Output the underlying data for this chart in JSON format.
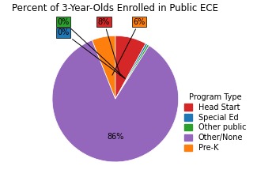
{
  "title": "Percent of 3-Year-Olds Enrolled in Public ECE",
  "slices": [
    8,
    0.5,
    0.5,
    85,
    6
  ],
  "raw_pcts": [
    8,
    0,
    0,
    86,
    6
  ],
  "labels": [
    "Head Start",
    "Special Ed",
    "Other public",
    "Other/None",
    "Pre-K"
  ],
  "pct_labels": [
    "8%",
    "0%",
    "0%",
    "86%",
    "6%"
  ],
  "colors": [
    "#d62728",
    "#1f77b4",
    "#2ca02c",
    "#9467bd",
    "#ff7f0e"
  ],
  "legend_title": "Program Type",
  "figsize": [
    3.25,
    2.29
  ],
  "dpi": 100,
  "startangle": 90
}
